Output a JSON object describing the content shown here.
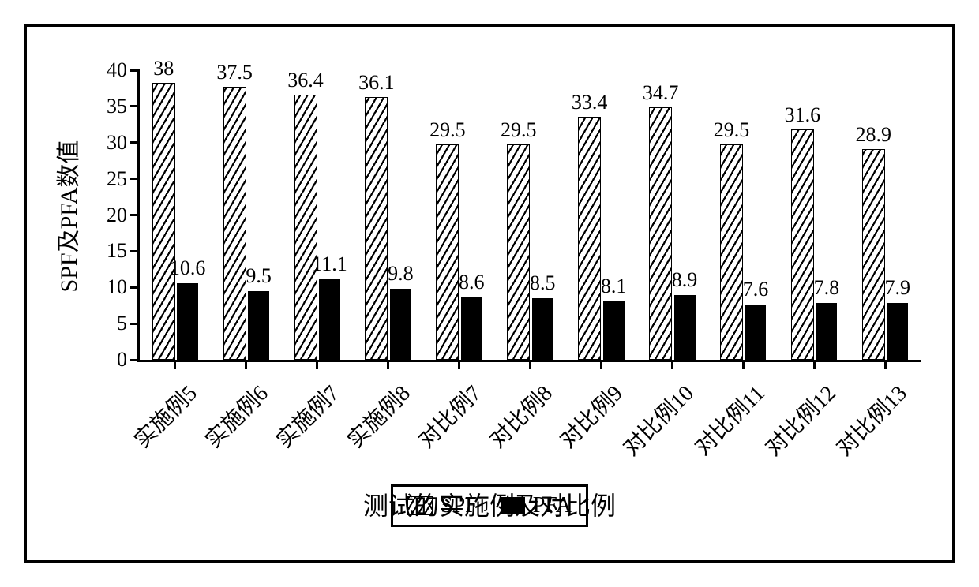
{
  "chart": {
    "type": "bar-grouped",
    "background_color": "#ffffff",
    "border_color": "#000000",
    "ylabel": "SPF及PFA数值",
    "xlabel": "测试的实施例及对比例",
    "label_fontsize_pt": 22,
    "title_fontsize_pt": 24,
    "data_label_fontsize_pt": 20,
    "ylim": [
      0,
      40
    ],
    "ytick_step": 5,
    "yticks": [
      0,
      5,
      10,
      15,
      20,
      25,
      30,
      35,
      40
    ],
    "categories": [
      "实施例5",
      "实施例6",
      "实施例7",
      "实施例8",
      "对比例7",
      "对比例8",
      "对比例9",
      "对比例10",
      "对比例11",
      "对比例12",
      "对比例13"
    ],
    "series": [
      {
        "name": "SPF",
        "pattern": "diagonal-hatch",
        "hatch_angle_deg": -60,
        "hatch_stroke_color": "#000000",
        "hatch_bg_color": "#ffffff",
        "values": [
          38,
          37.5,
          36.4,
          36.1,
          29.5,
          29.5,
          33.4,
          34.7,
          29.5,
          31.6,
          28.9
        ]
      },
      {
        "name": "PFA",
        "fill_color": "#000000",
        "values": [
          10.6,
          9.5,
          11.1,
          9.8,
          8.6,
          8.5,
          8.1,
          8.9,
          7.6,
          7.8,
          7.9
        ]
      }
    ],
    "bar_width_ratio": 0.3,
    "bar_gap_ratio": 0.05,
    "legend": {
      "position": "bottom-center",
      "items": [
        {
          "key": "SPF",
          "label": "SPF"
        },
        {
          "key": "PFA",
          "label": "PFA"
        }
      ],
      "border_color": "#000000"
    },
    "colors": {
      "axis": "#000000",
      "text": "#000000"
    }
  }
}
